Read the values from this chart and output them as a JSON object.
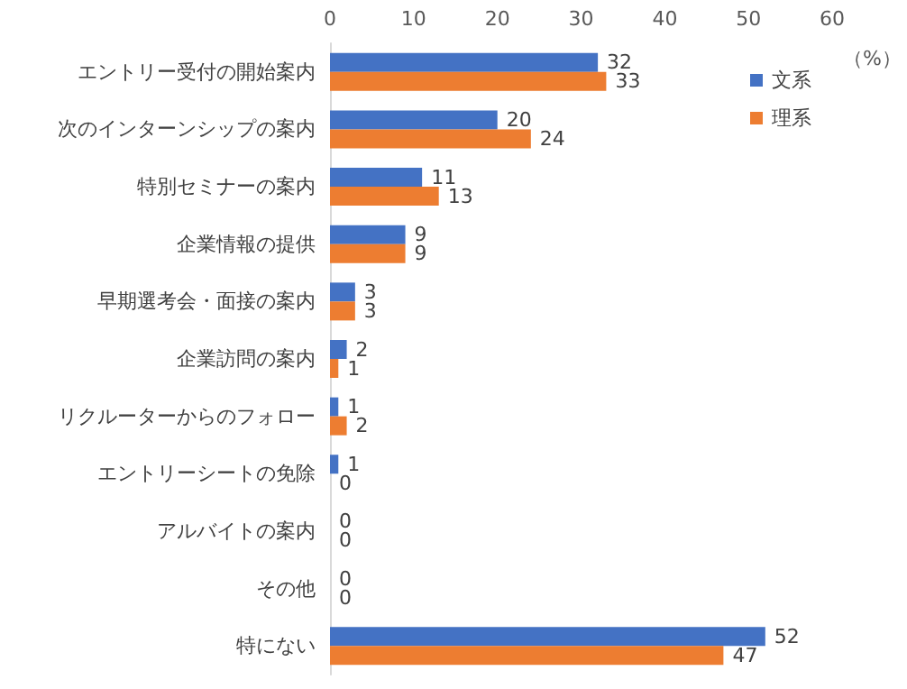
{
  "chart_data": {
    "type": "bar",
    "orientation": "horizontal",
    "categories": [
      "エントリー受付の開始案内",
      "次のインターンシップの案内",
      "特別セミナーの案内",
      "企業情報の提供",
      "早期選考会・面接の案内",
      "企業訪問の案内",
      "リクルーターからのフォロー",
      "エントリーシートの免除",
      "アルバイトの案内",
      "その他",
      "特にない"
    ],
    "series": [
      {
        "name": "文系",
        "color": "#4472c4",
        "values": [
          32,
          20,
          11,
          9,
          3,
          2,
          1,
          1,
          0,
          0,
          52
        ]
      },
      {
        "name": "理系",
        "color": "#ed7d31",
        "values": [
          33,
          24,
          13,
          9,
          3,
          1,
          2,
          0,
          0,
          0,
          47
        ]
      }
    ],
    "xlim": [
      0,
      60
    ],
    "xticks": [
      0,
      10,
      20,
      30,
      40,
      50,
      60
    ],
    "xlabel": "（%）",
    "data_labels": true,
    "legend": "top right",
    "grid": false
  }
}
